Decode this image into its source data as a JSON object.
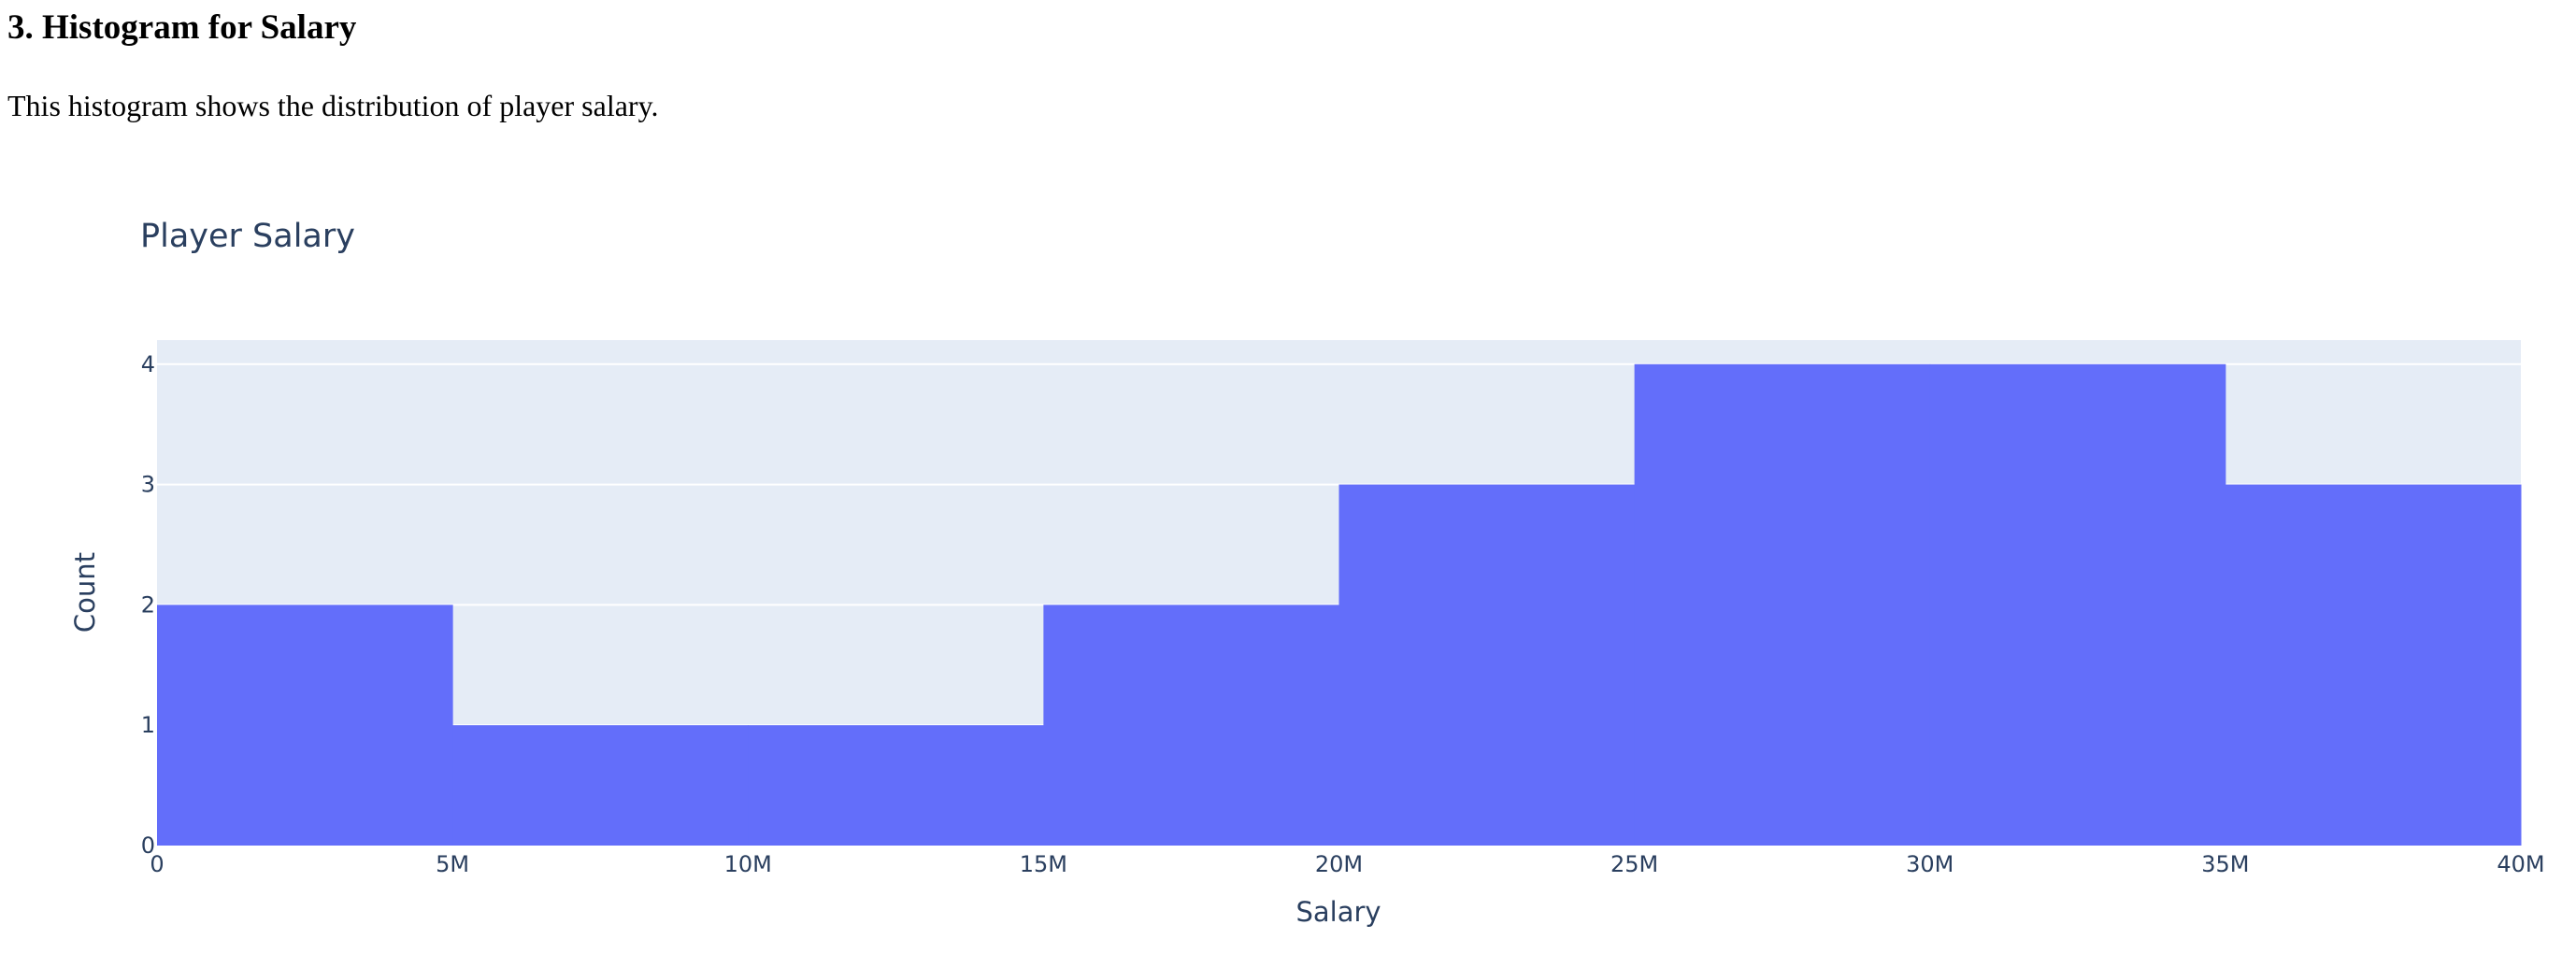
{
  "section": {
    "heading": "3. Histogram for Salary",
    "description": "This histogram shows the distribution of player salary."
  },
  "chart_data": {
    "type": "bar",
    "variant": "histogram",
    "title": "Player Salary",
    "xlabel": "Salary",
    "ylabel": "Count",
    "bin_edges": [
      0,
      5000000,
      10000000,
      15000000,
      20000000,
      25000000,
      30000000,
      35000000,
      40000000
    ],
    "values": [
      2,
      1,
      1,
      2,
      3,
      4,
      4,
      3
    ],
    "xlim": [
      0,
      40000000
    ],
    "ylim": [
      0,
      4.2
    ],
    "x_ticks": [
      0,
      5000000,
      10000000,
      15000000,
      20000000,
      25000000,
      30000000,
      35000000,
      40000000
    ],
    "x_tick_labels": [
      "0",
      "5M",
      "10M",
      "15M",
      "20M",
      "25M",
      "30M",
      "35M",
      "40M"
    ],
    "y_ticks": [
      0,
      1,
      2,
      3,
      4
    ],
    "y_tick_labels": [
      "0",
      "1",
      "2",
      "3",
      "4"
    ],
    "grid": true,
    "colors": {
      "bar": "#636efa",
      "plot_background": "#e5ecf6",
      "grid": "#ffffff",
      "text": "#2a3f5f"
    }
  }
}
